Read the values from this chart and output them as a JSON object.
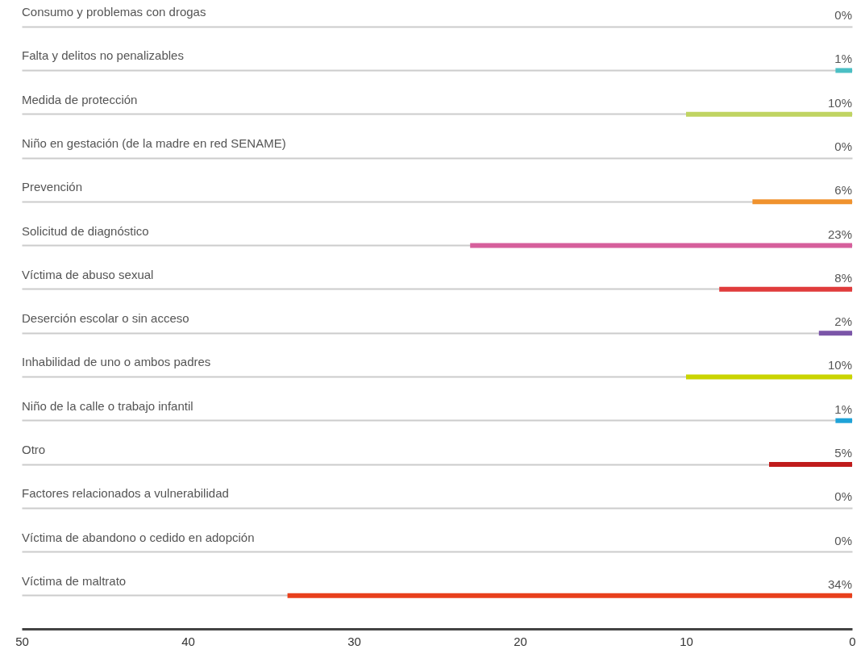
{
  "chart_data": {
    "type": "bar",
    "orientation": "horizontal",
    "categories": [
      "Consumo y problemas con drogas",
      "Falta y delitos no penalizables",
      "Medida de protección",
      "Niño en gestación (de la madre en red SENAME)",
      "Prevención",
      "Solicitud de diagnóstico",
      "Víctima de abuso sexual",
      "Deserción escolar o sin acceso",
      "Inhabilidad de uno o ambos padres",
      "Niño de la calle o trabajo infantil",
      "Otro",
      "Factores relacionados a vulnerabilidad",
      "Víctima de abandono o cedido en adopción",
      "Víctima de maltrato"
    ],
    "values": [
      0,
      1,
      10,
      0,
      6,
      23,
      8,
      2,
      10,
      1,
      5,
      0,
      0,
      34
    ],
    "value_labels": [
      "0%",
      "1%",
      "10%",
      "0%",
      "6%",
      "23%",
      "8%",
      "2%",
      "10%",
      "1%",
      "5%",
      "0%",
      "0%",
      "34%"
    ],
    "colors": [
      "#0d4a8a",
      "#4bbfc4",
      "#c0d462",
      "#f2e08a",
      "#f0922e",
      "#d65f9c",
      "#e03c3c",
      "#7b55a8",
      "#cad400",
      "#1fa3d8",
      "#c01c1c",
      "#d8d400",
      "#c0479a",
      "#e8401c"
    ],
    "xlim": [
      50,
      0
    ],
    "xticks": [
      50,
      40,
      30,
      20,
      10,
      0
    ],
    "grid": "y"
  }
}
